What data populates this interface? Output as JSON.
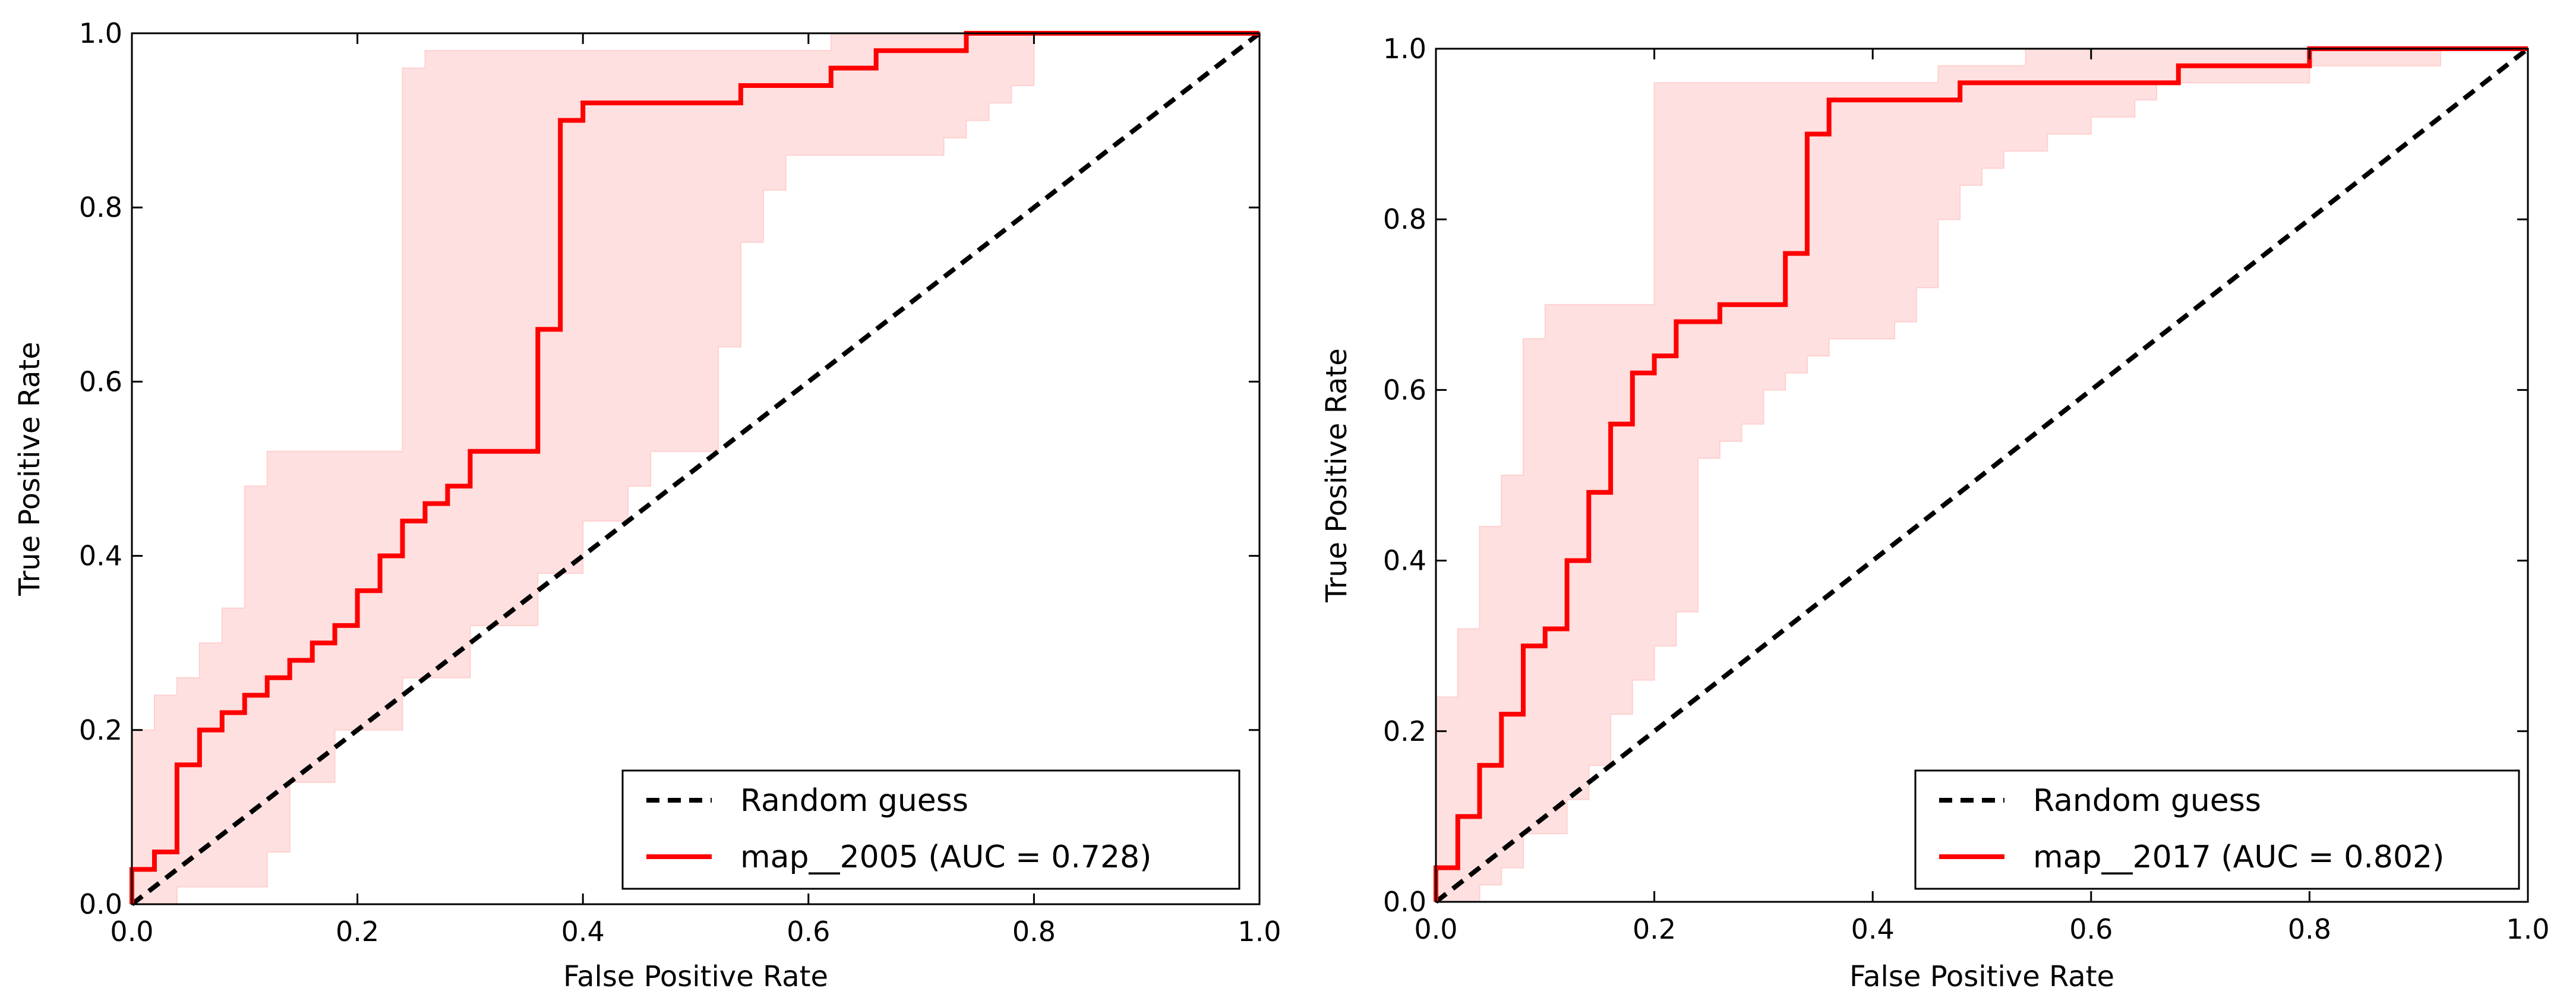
{
  "colors": {
    "roc_line": "#ff0000",
    "band_fill": "#ffe0e0",
    "band_edge": "#ffd0d0",
    "random_line": "#000000",
    "axes": "#000000",
    "background": "#ffffff"
  },
  "chart_data": [
    {
      "type": "line",
      "title": "",
      "xlabel": "False Positive Rate",
      "ylabel": "True Positive Rate",
      "xlim": [
        0.0,
        1.0
      ],
      "ylim": [
        0.0,
        1.0
      ],
      "grid": false,
      "xticks": [
        "0.0",
        "0.2",
        "0.4",
        "0.6",
        "0.8",
        "1.0"
      ],
      "yticks": [
        "0.0",
        "0.2",
        "0.4",
        "0.6",
        "0.8",
        "1.0"
      ],
      "legend_position": "bottom-right",
      "legend": [
        "Random guess",
        "map__2005 (AUC = 0.728)"
      ],
      "series": [
        {
          "name": "Random guess",
          "style": "dashed",
          "color": "#000000",
          "x": [
            0,
            1
          ],
          "y": [
            0,
            1
          ]
        },
        {
          "name": "map__2005 (AUC = 0.728)",
          "style": "solid-step",
          "color": "#ff0000",
          "x": [
            0,
            0,
            0.02,
            0.02,
            0.04,
            0.04,
            0.06,
            0.06,
            0.08,
            0.08,
            0.1,
            0.1,
            0.12,
            0.12,
            0.14,
            0.14,
            0.16,
            0.16,
            0.18,
            0.18,
            0.2,
            0.2,
            0.22,
            0.22,
            0.24,
            0.24,
            0.26,
            0.26,
            0.28,
            0.28,
            0.3,
            0.3,
            0.36,
            0.36,
            0.38,
            0.38,
            0.4,
            0.4,
            0.54,
            0.54,
            0.62,
            0.62,
            0.66,
            0.66,
            0.74,
            0.74,
            1.0
          ],
          "y": [
            0,
            0.04,
            0.04,
            0.06,
            0.06,
            0.16,
            0.16,
            0.2,
            0.2,
            0.22,
            0.22,
            0.24,
            0.24,
            0.26,
            0.26,
            0.28,
            0.28,
            0.3,
            0.3,
            0.32,
            0.32,
            0.36,
            0.36,
            0.4,
            0.4,
            0.44,
            0.44,
            0.46,
            0.46,
            0.48,
            0.48,
            0.52,
            0.52,
            0.66,
            0.66,
            0.9,
            0.9,
            0.92,
            0.92,
            0.94,
            0.94,
            0.96,
            0.96,
            0.98,
            0.98,
            1.0,
            1.0
          ]
        }
      ],
      "band": {
        "upper_x": [
          0,
          0,
          0.02,
          0.02,
          0.04,
          0.04,
          0.06,
          0.06,
          0.08,
          0.08,
          0.1,
          0.1,
          0.12,
          0.12,
          0.24,
          0.24,
          0.26,
          0.26,
          0.5,
          0.5,
          0.62,
          0.62,
          0.92,
          0.92,
          1.0
        ],
        "upper_y": [
          0,
          0.2,
          0.2,
          0.24,
          0.24,
          0.26,
          0.26,
          0.3,
          0.3,
          0.34,
          0.34,
          0.48,
          0.48,
          0.52,
          0.52,
          0.96,
          0.96,
          0.98,
          0.98,
          0.98,
          0.98,
          1.0,
          1.0,
          1.0,
          1.0
        ],
        "lower_x": [
          0.0,
          0.04,
          0.04,
          0.12,
          0.12,
          0.14,
          0.14,
          0.18,
          0.18,
          0.24,
          0.24,
          0.3,
          0.3,
          0.36,
          0.36,
          0.4,
          0.4,
          0.44,
          0.44,
          0.46,
          0.46,
          0.48,
          0.48,
          0.52,
          0.52,
          0.54,
          0.54,
          0.56,
          0.56,
          0.58,
          0.58,
          0.6,
          0.6,
          0.72,
          0.72,
          0.74,
          0.74,
          0.76,
          0.76,
          0.78,
          0.78,
          0.8,
          0.8,
          1.0
        ],
        "lower_y": [
          0.0,
          0.0,
          0.02,
          0.02,
          0.06,
          0.06,
          0.14,
          0.14,
          0.2,
          0.2,
          0.26,
          0.26,
          0.32,
          0.32,
          0.38,
          0.38,
          0.44,
          0.44,
          0.48,
          0.48,
          0.52,
          0.52,
          0.52,
          0.52,
          0.64,
          0.64,
          0.76,
          0.76,
          0.82,
          0.82,
          0.86,
          0.86,
          0.86,
          0.86,
          0.88,
          0.88,
          0.9,
          0.9,
          0.92,
          0.92,
          0.94,
          0.94,
          1.0,
          1.0
        ]
      }
    },
    {
      "type": "line",
      "title": "",
      "xlabel": "False Positive Rate",
      "ylabel": "True Positive Rate",
      "xlim": [
        0.0,
        1.0
      ],
      "ylim": [
        0.0,
        1.0
      ],
      "grid": false,
      "xticks": [
        "0.0",
        "0.2",
        "0.4",
        "0.6",
        "0.8",
        "1.0"
      ],
      "yticks": [
        "0.0",
        "0.2",
        "0.4",
        "0.6",
        "0.8",
        "1.0"
      ],
      "legend_position": "bottom-right",
      "legend": [
        "Random guess",
        "map__2017 (AUC = 0.802)"
      ],
      "series": [
        {
          "name": "Random guess",
          "style": "dashed",
          "color": "#000000",
          "x": [
            0,
            1
          ],
          "y": [
            0,
            1
          ]
        },
        {
          "name": "map__2017 (AUC = 0.802)",
          "style": "solid-step",
          "color": "#ff0000",
          "x": [
            0,
            0,
            0.02,
            0.02,
            0.04,
            0.04,
            0.06,
            0.06,
            0.08,
            0.08,
            0.1,
            0.1,
            0.12,
            0.12,
            0.14,
            0.14,
            0.16,
            0.16,
            0.18,
            0.18,
            0.2,
            0.2,
            0.22,
            0.22,
            0.26,
            0.26,
            0.32,
            0.32,
            0.34,
            0.34,
            0.36,
            0.36,
            0.48,
            0.48,
            0.68,
            0.68,
            0.8,
            0.8,
            1.0
          ],
          "y": [
            0,
            0.04,
            0.04,
            0.1,
            0.1,
            0.16,
            0.16,
            0.22,
            0.22,
            0.3,
            0.3,
            0.32,
            0.32,
            0.4,
            0.4,
            0.48,
            0.48,
            0.56,
            0.56,
            0.62,
            0.62,
            0.64,
            0.64,
            0.68,
            0.68,
            0.7,
            0.7,
            0.76,
            0.76,
            0.9,
            0.9,
            0.94,
            0.94,
            0.96,
            0.96,
            0.98,
            0.98,
            1.0,
            1.0
          ]
        }
      ],
      "band": {
        "upper_x": [
          0,
          0,
          0.02,
          0.02,
          0.04,
          0.04,
          0.06,
          0.06,
          0.08,
          0.08,
          0.1,
          0.1,
          0.2,
          0.2,
          0.46,
          0.46,
          0.54,
          0.54,
          1.0
        ],
        "upper_y": [
          0,
          0.24,
          0.24,
          0.32,
          0.32,
          0.44,
          0.44,
          0.5,
          0.5,
          0.66,
          0.66,
          0.7,
          0.7,
          0.96,
          0.96,
          0.98,
          0.98,
          1.0,
          1.0
        ],
        "lower_x": [
          0.0,
          0.04,
          0.04,
          0.06,
          0.06,
          0.08,
          0.08,
          0.12,
          0.12,
          0.14,
          0.14,
          0.16,
          0.16,
          0.18,
          0.18,
          0.2,
          0.2,
          0.22,
          0.22,
          0.24,
          0.24,
          0.26,
          0.26,
          0.28,
          0.28,
          0.3,
          0.3,
          0.32,
          0.32,
          0.34,
          0.34,
          0.36,
          0.36,
          0.42,
          0.42,
          0.44,
          0.44,
          0.46,
          0.46,
          0.48,
          0.48,
          0.5,
          0.5,
          0.52,
          0.52,
          0.54,
          0.54,
          0.56,
          0.56,
          0.6,
          0.6,
          0.64,
          0.64,
          0.66,
          0.66,
          0.68,
          0.68,
          0.8,
          0.8,
          0.92,
          0.92,
          1.0
        ],
        "lower_y": [
          0.0,
          0.0,
          0.02,
          0.02,
          0.04,
          0.04,
          0.08,
          0.08,
          0.12,
          0.12,
          0.16,
          0.16,
          0.22,
          0.22,
          0.26,
          0.26,
          0.3,
          0.3,
          0.34,
          0.34,
          0.52,
          0.52,
          0.54,
          0.54,
          0.56,
          0.56,
          0.6,
          0.6,
          0.62,
          0.62,
          0.64,
          0.64,
          0.66,
          0.66,
          0.68,
          0.68,
          0.72,
          0.72,
          0.8,
          0.8,
          0.84,
          0.84,
          0.86,
          0.86,
          0.88,
          0.88,
          0.88,
          0.88,
          0.9,
          0.9,
          0.92,
          0.92,
          0.94,
          0.94,
          0.96,
          0.96,
          0.96,
          0.96,
          0.98,
          0.98,
          1.0,
          1.0
        ]
      }
    }
  ]
}
